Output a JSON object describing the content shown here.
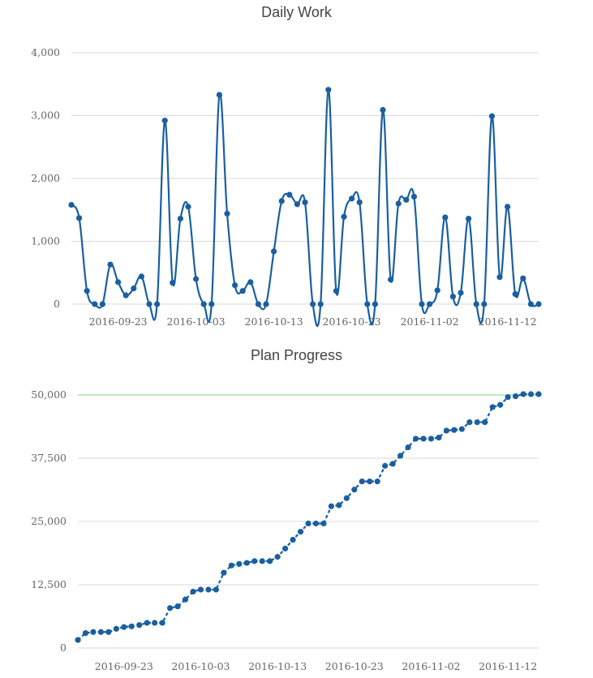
{
  "colors": {
    "line": "#1a5fa0",
    "point": "#1a5fa0",
    "target": "#7fd36b",
    "grid": "#d9d9d9",
    "tick_text": "#666666",
    "title_text": "#444444"
  },
  "chart_data": [
    {
      "id": "daily-work",
      "type": "line",
      "title": "Daily Work",
      "xlabel": "",
      "ylabel": "",
      "smooth": true,
      "grid": true,
      "x_start": "2016-09-17",
      "x_end": "2016-11-17",
      "x_ticks": [
        "2016-09-23",
        "2016-10-03",
        "2016-10-13",
        "2016-10-23",
        "2016-11-02",
        "2016-11-12"
      ],
      "ylim": [
        0,
        4000
      ],
      "y_ticks": [
        0,
        1000,
        2000,
        3000,
        4000
      ],
      "y_tick_labels": [
        "0",
        "1,000",
        "2,000",
        "3,000",
        "4,000"
      ],
      "series": [
        {
          "values": [
            1580,
            1370,
            210,
            0,
            0,
            630,
            350,
            140,
            250,
            440,
            0,
            0,
            2920,
            340,
            1360,
            1550,
            400,
            0,
            0,
            3330,
            1440,
            300,
            210,
            350,
            0,
            0,
            840,
            1640,
            1740,
            1590,
            1620,
            0,
            0,
            3410,
            210,
            1390,
            1680,
            1620,
            0,
            0,
            3090,
            390,
            1600,
            1660,
            1710,
            0,
            0,
            220,
            1380,
            120,
            180,
            1360,
            0,
            0,
            2990,
            430,
            1550,
            160,
            410,
            0,
            0
          ]
        }
      ]
    },
    {
      "id": "plan-progress",
      "type": "line",
      "title": "Plan Progress",
      "xlabel": "",
      "ylabel": "",
      "grid": true,
      "x_start": "2016-09-17",
      "x_end": "2016-11-17",
      "x_ticks": [
        "2016-09-23",
        "2016-10-03",
        "2016-10-13",
        "2016-10-23",
        "2016-11-02",
        "2016-11-12"
      ],
      "ylim": [
        0,
        50000
      ],
      "y_ticks": [
        0,
        12500,
        25000,
        37500,
        50000
      ],
      "y_tick_labels": [
        "0",
        "12,500",
        "25,000",
        "37,500",
        "50,000"
      ],
      "target_line": 50000,
      "series": [
        {
          "values": [
            1580,
            2950,
            3160,
            3160,
            3160,
            3790,
            4140,
            4280,
            4530,
            4970,
            4970,
            4970,
            7890,
            8230,
            9590,
            11140,
            11540,
            11540,
            11540,
            14870,
            16310,
            16610,
            16820,
            17170,
            17170,
            17170,
            18010,
            19650,
            21390,
            22980,
            24600,
            24600,
            24600,
            28010,
            28220,
            29610,
            31290,
            32910,
            32910,
            32910,
            36000,
            36390,
            37990,
            39650,
            41360,
            41360,
            41360,
            41580,
            42960,
            43080,
            43260,
            44620,
            44620,
            44620,
            47610,
            48040,
            49590,
            49750,
            50160,
            50160,
            50160
          ]
        }
      ]
    }
  ]
}
